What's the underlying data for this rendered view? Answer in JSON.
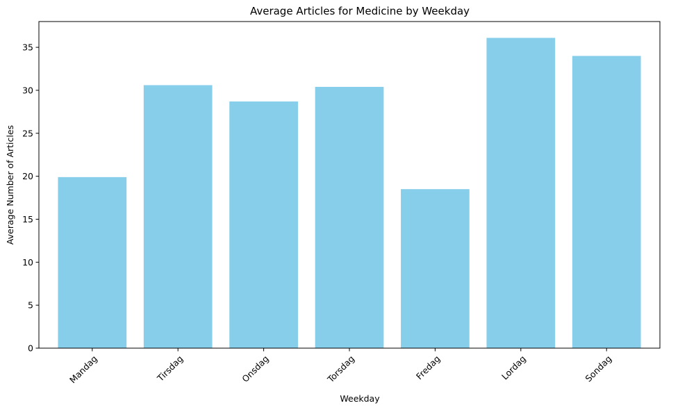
{
  "chart_data": {
    "type": "bar",
    "title": "Average Articles for Medicine by Weekday",
    "xlabel": "Weekday",
    "ylabel": "Average Number of Articles",
    "categories": [
      "Mandag",
      "Tirsdag",
      "Onsdag",
      "Torsdag",
      "Fredag",
      "Lordag",
      "Sondag"
    ],
    "values": [
      19.9,
      30.6,
      28.7,
      30.4,
      18.5,
      36.1,
      34.0
    ],
    "ylim": [
      0,
      38.0
    ],
    "yticks": [
      0,
      5,
      10,
      15,
      20,
      25,
      30,
      35
    ],
    "grid": false,
    "legend": "none",
    "bar_color": "#87CEEB"
  }
}
